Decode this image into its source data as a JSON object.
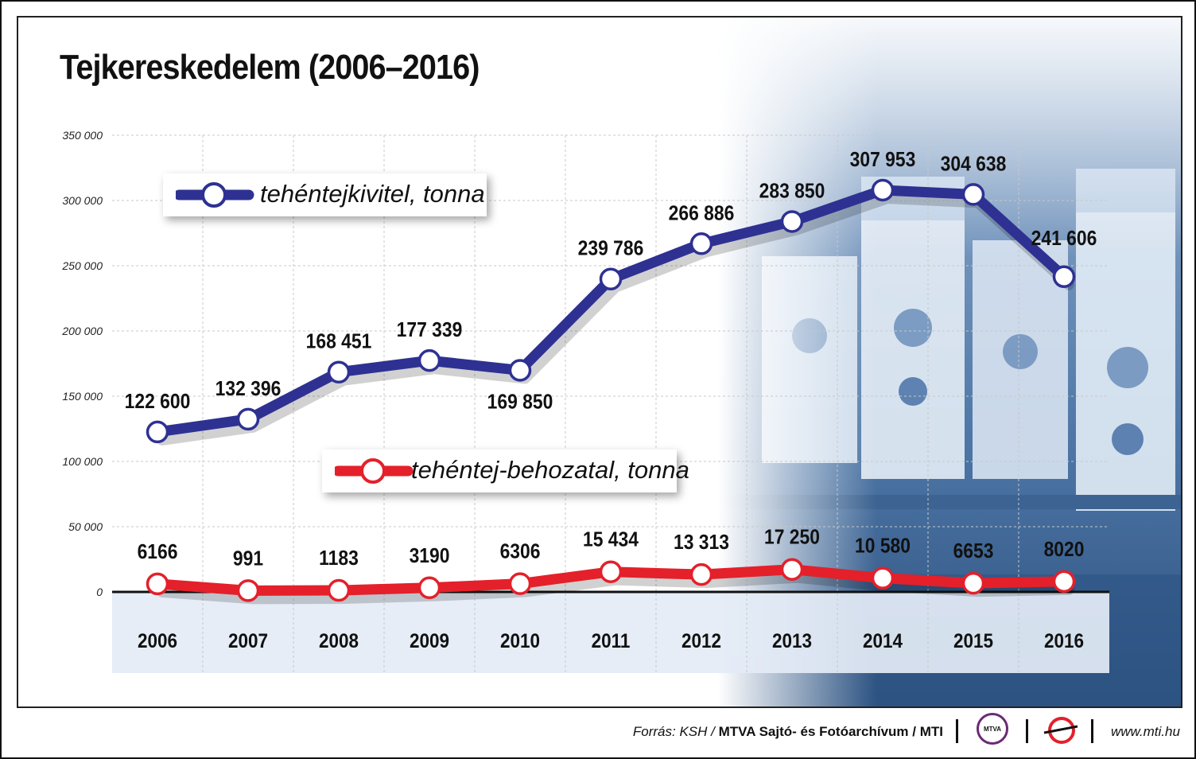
{
  "title": "Tejkereskedelem (2006–2016)",
  "colors": {
    "export": "#2e3192",
    "import": "#e4202a",
    "axis_band": "#e4ecf6",
    "photo": "#5b82b3"
  },
  "chart_data": {
    "type": "line",
    "title": "Tejkereskedelem (2006–2016)",
    "categories": [
      "2006",
      "2007",
      "2008",
      "2009",
      "2010",
      "2011",
      "2012",
      "2013",
      "2014",
      "2015",
      "2016"
    ],
    "y_ticks": [
      0,
      50000,
      100000,
      150000,
      200000,
      250000,
      300000,
      350000
    ],
    "y_tick_labels": [
      "0",
      "50 000",
      "100 000",
      "150 000",
      "200 000",
      "250 000",
      "300 000",
      "350 000"
    ],
    "ylim": [
      0,
      350000
    ],
    "grid": true,
    "series": [
      {
        "name": "tehéntejkivitel, tonna",
        "color": "#2e3192",
        "values": [
          122600,
          132396,
          168451,
          177339,
          169850,
          239786,
          266886,
          283850,
          307953,
          304638,
          241606
        ],
        "labels": [
          "122 600",
          "132 396",
          "168 451",
          "177 339",
          "169 850",
          "239 786",
          "266 886",
          "283 850",
          "307 953",
          "304 638",
          "241 606"
        ]
      },
      {
        "name": "tehéntej-behozatal, tonna",
        "color": "#e4202a",
        "values": [
          6166,
          991,
          1183,
          3190,
          6306,
          15434,
          13313,
          17250,
          10580,
          6653,
          8020
        ],
        "labels": [
          "6166",
          "991",
          "1183",
          "3190",
          "6306",
          "15 434",
          "13 313",
          "17 250",
          "10 580",
          "6653",
          "8020"
        ]
      }
    ]
  },
  "footer": {
    "source_label": "Forrás: KSH / ",
    "source_org": "MTVA Sajtó- és Fotóarchívum / MTI",
    "mtva_logo_text": "MTVA",
    "website": "www.mti.hu"
  }
}
